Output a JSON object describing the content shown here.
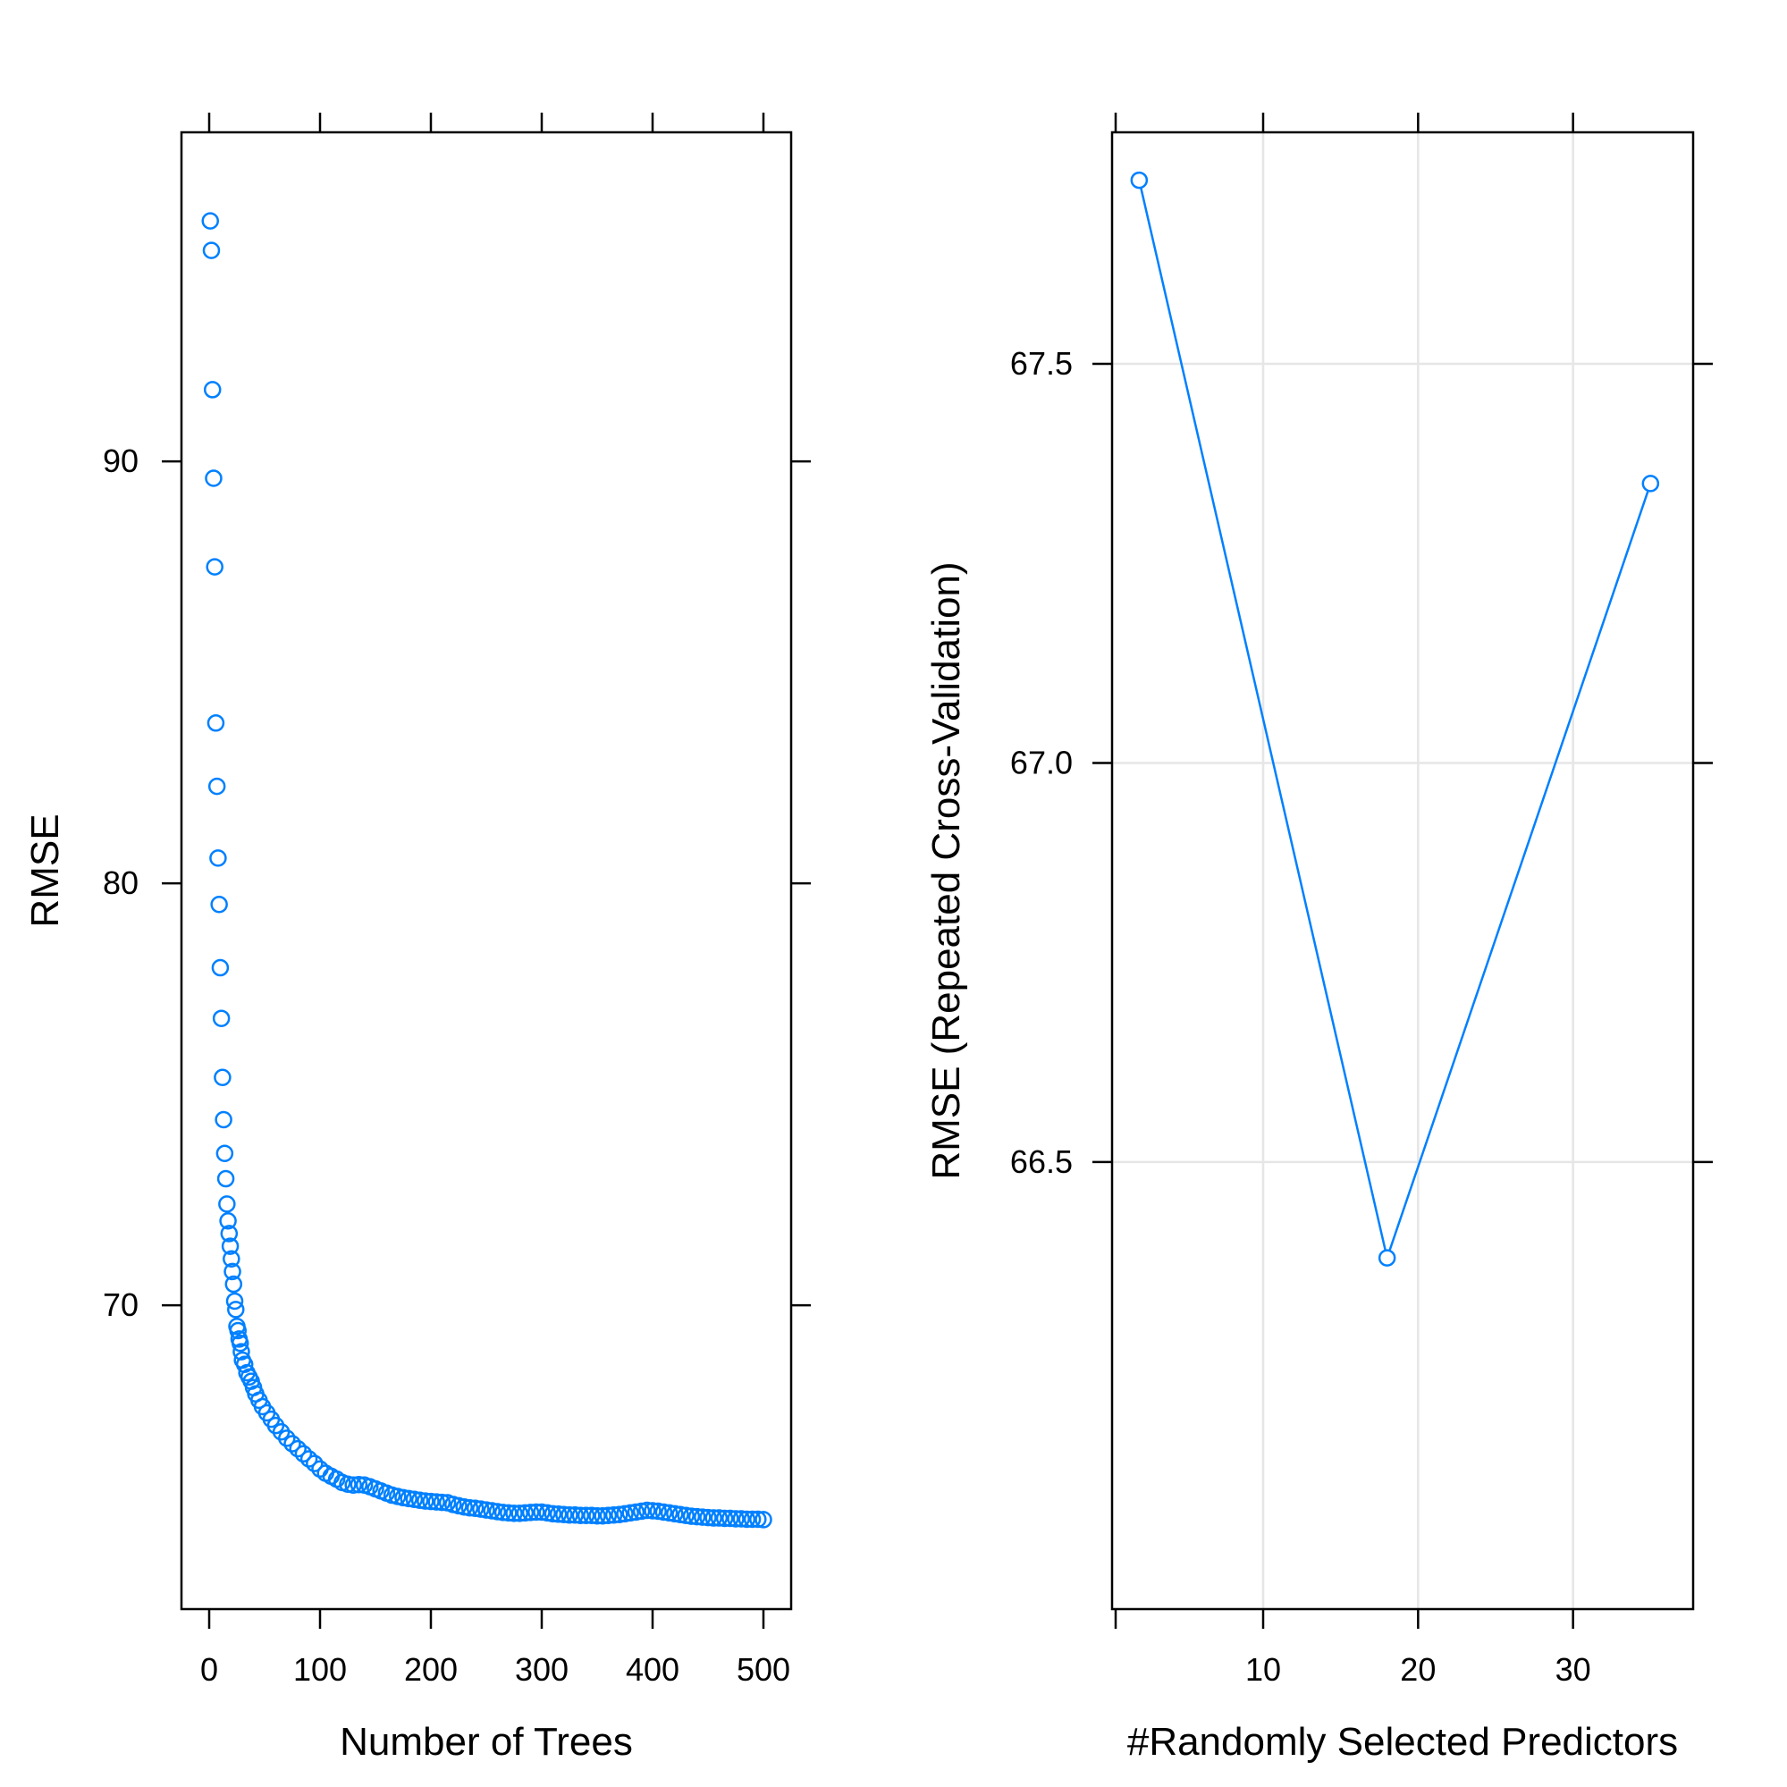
{
  "chart_data": [
    {
      "type": "scatter",
      "xlabel": "Number of Trees",
      "ylabel": "RMSE",
      "xlim": [
        -25,
        525
      ],
      "ylim": [
        62.8,
        97.8
      ],
      "xticks": [
        0,
        100,
        200,
        300,
        400,
        500
      ],
      "yticks": [
        70,
        80,
        90
      ],
      "xtick_labels": [
        "0",
        "100",
        "200",
        "300",
        "400",
        "500"
      ],
      "ytick_labels": [
        "70",
        "80",
        "90"
      ],
      "grid": false,
      "point_color": "#0080ff",
      "marker": "open-circle",
      "points": [
        [
          1,
          95.7
        ],
        [
          2,
          95.0
        ],
        [
          3,
          91.7
        ],
        [
          4,
          89.6
        ],
        [
          5,
          87.5
        ],
        [
          6,
          83.8
        ],
        [
          7,
          82.3
        ],
        [
          8,
          80.6
        ],
        [
          9,
          79.5
        ],
        [
          10,
          78.0
        ],
        [
          11,
          76.8
        ],
        [
          12,
          75.4
        ],
        [
          13,
          74.4
        ],
        [
          14,
          73.6
        ],
        [
          15,
          73.0
        ],
        [
          16,
          72.4
        ],
        [
          17,
          72.0
        ],
        [
          18,
          71.7
        ],
        [
          19,
          71.4
        ],
        [
          20,
          71.1
        ],
        [
          21,
          70.8
        ],
        [
          22,
          70.5
        ],
        [
          23,
          70.1
        ],
        [
          24,
          69.9
        ],
        [
          25,
          69.5
        ],
        [
          26,
          69.4
        ],
        [
          27,
          69.2
        ],
        [
          28,
          69.1
        ],
        [
          29,
          68.9
        ],
        [
          30,
          68.7
        ],
        [
          32,
          68.6
        ],
        [
          34,
          68.4
        ],
        [
          36,
          68.3
        ],
        [
          38,
          68.2
        ],
        [
          40,
          68.05
        ],
        [
          42,
          67.9
        ],
        [
          45,
          67.75
        ],
        [
          48,
          67.6
        ],
        [
          52,
          67.45
        ],
        [
          56,
          67.3
        ],
        [
          60,
          67.15
        ],
        [
          65,
          67.0
        ],
        [
          70,
          66.85
        ],
        [
          75,
          66.72
        ],
        [
          80,
          66.6
        ],
        [
          85,
          66.48
        ],
        [
          90,
          66.36
        ],
        [
          95,
          66.25
        ],
        [
          100,
          66.12
        ],
        [
          105,
          66.02
        ],
        [
          110,
          65.95
        ],
        [
          115,
          65.88
        ],
        [
          120,
          65.8
        ],
        [
          125,
          65.76
        ],
        [
          130,
          65.74
        ],
        [
          135,
          65.75
        ],
        [
          140,
          65.74
        ],
        [
          145,
          65.7
        ],
        [
          150,
          65.65
        ],
        [
          155,
          65.6
        ],
        [
          160,
          65.55
        ],
        [
          165,
          65.5
        ],
        [
          170,
          65.47
        ],
        [
          175,
          65.44
        ],
        [
          180,
          65.42
        ],
        [
          185,
          65.4
        ],
        [
          190,
          65.38
        ],
        [
          195,
          65.36
        ],
        [
          200,
          65.35
        ],
        [
          205,
          65.34
        ],
        [
          210,
          65.33
        ],
        [
          215,
          65.32
        ],
        [
          220,
          65.28
        ],
        [
          225,
          65.25
        ],
        [
          230,
          65.22
        ],
        [
          235,
          65.2
        ],
        [
          240,
          65.19
        ],
        [
          245,
          65.17
        ],
        [
          250,
          65.15
        ],
        [
          255,
          65.13
        ],
        [
          260,
          65.11
        ],
        [
          265,
          65.09
        ],
        [
          270,
          65.08
        ],
        [
          275,
          65.07
        ],
        [
          280,
          65.07
        ],
        [
          285,
          65.08
        ],
        [
          290,
          65.09
        ],
        [
          295,
          65.1
        ],
        [
          300,
          65.1
        ],
        [
          305,
          65.08
        ],
        [
          310,
          65.06
        ],
        [
          315,
          65.05
        ],
        [
          320,
          65.04
        ],
        [
          325,
          65.03
        ],
        [
          330,
          65.03
        ],
        [
          335,
          65.02
        ],
        [
          340,
          65.02
        ],
        [
          345,
          65.02
        ],
        [
          350,
          65.01
        ],
        [
          355,
          65.01
        ],
        [
          360,
          65.02
        ],
        [
          365,
          65.03
        ],
        [
          370,
          65.04
        ],
        [
          375,
          65.06
        ],
        [
          380,
          65.08
        ],
        [
          385,
          65.1
        ],
        [
          390,
          65.12
        ],
        [
          395,
          65.14
        ],
        [
          400,
          65.13
        ],
        [
          405,
          65.12
        ],
        [
          410,
          65.1
        ],
        [
          415,
          65.08
        ],
        [
          420,
          65.06
        ],
        [
          425,
          65.04
        ],
        [
          430,
          65.02
        ],
        [
          435,
          65.0
        ],
        [
          440,
          64.99
        ],
        [
          445,
          64.98
        ],
        [
          450,
          64.97
        ],
        [
          455,
          64.96
        ],
        [
          460,
          64.96
        ],
        [
          465,
          64.95
        ],
        [
          470,
          64.95
        ],
        [
          475,
          64.94
        ],
        [
          480,
          64.94
        ],
        [
          485,
          64.93
        ],
        [
          490,
          64.93
        ],
        [
          495,
          64.93
        ],
        [
          500,
          64.92
        ]
      ]
    },
    {
      "type": "line",
      "xlabel": "#Randomly Selected Predictors",
      "ylabel": "RMSE (Repeated Cross-Validation)",
      "xlim": [
        0.25,
        37.75
      ],
      "ylim": [
        65.94,
        67.79
      ],
      "xticks": [
        10,
        20,
        30
      ],
      "yticks": [
        66.5,
        67.0,
        67.5
      ],
      "xtick_labels": [
        "10",
        "20",
        "30"
      ],
      "ytick_labels": [
        "66.5",
        "67.0",
        "67.5"
      ],
      "grid": true,
      "grid_color": "#e6e6e6",
      "line_color": "#0080ff",
      "marker": "open-circle",
      "x": [
        2,
        18,
        35
      ],
      "y": [
        67.73,
        66.38,
        67.35
      ]
    }
  ]
}
